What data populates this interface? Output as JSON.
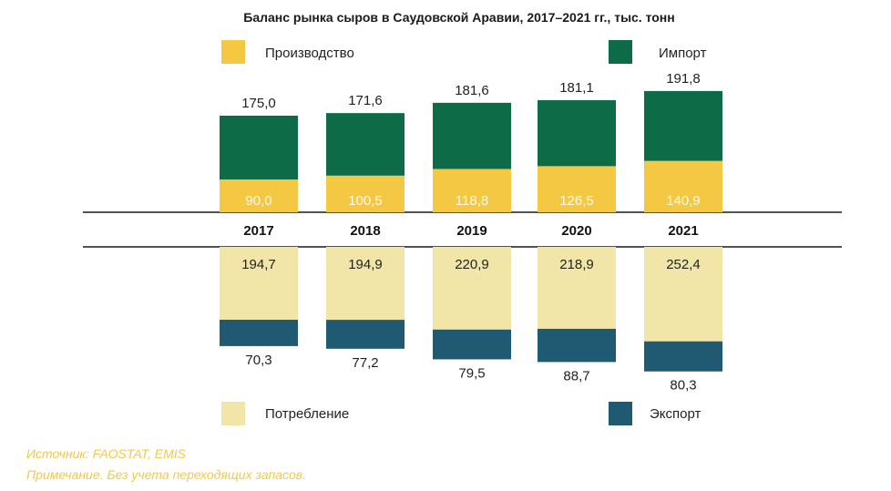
{
  "chart_data": {
    "type": "bar",
    "title": "Баланс рынка сыров в Саудовской Аравии, 2017–2021 гг., тыс. тонн",
    "categories": [
      "2017",
      "2018",
      "2019",
      "2020",
      "2021"
    ],
    "upper": {
      "stacked": true,
      "series": [
        {
          "name": "Производство",
          "color": "#f5c843",
          "values": [
            "90,0",
            "100,5",
            "118,8",
            "126,5",
            "140,9"
          ]
        },
        {
          "name": "Импорт",
          "color": "#0e6b48",
          "values": [
            "175,0",
            "171,6",
            "181,6",
            "181,1",
            "191,8"
          ]
        }
      ]
    },
    "lower": {
      "stacked": true,
      "series": [
        {
          "name": "Потребление",
          "color": "#f1e6a8",
          "values": [
            "194,7",
            "194,9",
            "220,9",
            "218,9",
            "252,4"
          ]
        },
        {
          "name": "Экспорт",
          "color": "#1f5a72",
          "values": [
            "70,3",
            "77,2",
            "79,5",
            "88,7",
            "80,3"
          ]
        }
      ]
    },
    "legend": {
      "production": "Производство",
      "import": "Импорт",
      "consumption": "Потребление",
      "export": "Экспорт"
    }
  },
  "footer": {
    "source": "Источник: FAOSTAT, EMIS",
    "note": "Примечание. Без учета переходящих запасов."
  }
}
